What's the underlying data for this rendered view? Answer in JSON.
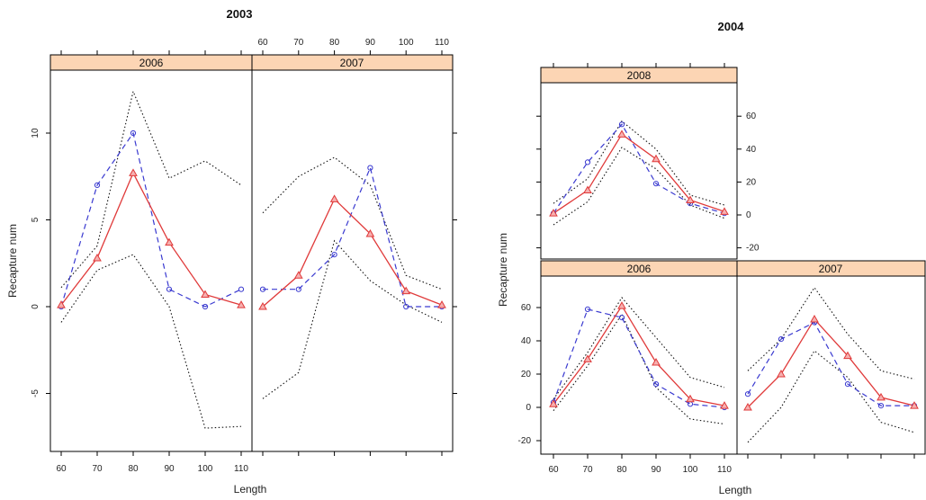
{
  "chart_data": [
    {
      "type": "line",
      "title": "2003",
      "xlabel": "Length",
      "ylabel": "Recapture num",
      "x": [
        60,
        70,
        80,
        90,
        100,
        110
      ],
      "x_ticks": [
        60,
        70,
        80,
        90,
        100,
        110
      ],
      "x_tick_labels": [
        "60",
        "70",
        "80",
        "90",
        "100",
        "110"
      ],
      "y_ticks": [
        -5,
        0,
        5,
        10
      ],
      "y_tick_labels": [
        "-5",
        "0",
        "5",
        "10"
      ],
      "ylim": [
        -8,
        14
      ],
      "grid": false,
      "styles": {
        "observed": "#3a3ad0",
        "predicted": "#e03a3a",
        "bound": "#111111",
        "strip": "#fcd5b4"
      },
      "panels": [
        {
          "strip": "2006",
          "observed": [
            0,
            7,
            10,
            1,
            0,
            1
          ],
          "predicted": [
            0.1,
            2.8,
            7.7,
            3.7,
            0.7,
            0.1
          ],
          "lower": [
            -0.9,
            2.1,
            3,
            0,
            -7,
            -6.9
          ],
          "upper": [
            1.1,
            3.5,
            12.4,
            7.4,
            8.4,
            7
          ]
        },
        {
          "strip": "2007",
          "observed": [
            1,
            1,
            3,
            8,
            0,
            0
          ],
          "predicted": [
            0,
            1.8,
            6.2,
            4.2,
            0.9,
            0.1
          ],
          "lower": [
            -5.3,
            -3.8,
            3.8,
            1.5,
            0.1,
            -0.9
          ],
          "upper": [
            5.4,
            7.5,
            8.6,
            7,
            1.8,
            1
          ]
        }
      ]
    },
    {
      "type": "line",
      "title": "2004",
      "xlabel": "Length",
      "ylabel": "Recapture num",
      "x": [
        60,
        70,
        80,
        90,
        100,
        110
      ],
      "x_ticks": [
        60,
        70,
        80,
        90,
        100,
        110
      ],
      "x_tick_labels": [
        "60",
        "70",
        "80",
        "90",
        "100",
        "110"
      ],
      "y_ticks": [
        -20,
        0,
        20,
        40,
        60
      ],
      "y_tick_labels": [
        "-20",
        "0",
        "20",
        "40",
        "60"
      ],
      "ylim": [
        -25,
        73
      ],
      "grid": false,
      "styles": {
        "observed": "#3a3ad0",
        "predicted": "#e03a3a",
        "bound": "#111111",
        "strip": "#fcd5b4"
      },
      "panels": [
        {
          "strip": "2008",
          "observed": [
            1,
            32,
            55,
            19,
            7,
            1
          ],
          "predicted": [
            1,
            15,
            49,
            34,
            9,
            2
          ],
          "lower": [
            -6,
            8,
            41,
            28,
            6,
            -2
          ],
          "upper": [
            7,
            22,
            57,
            40,
            12,
            6
          ]
        },
        {
          "strip": "2006",
          "observed": [
            3,
            59,
            54,
            14,
            2,
            0
          ],
          "predicted": [
            2,
            29,
            61,
            27,
            5,
            1
          ],
          "lower": [
            -2,
            25,
            56,
            12,
            -7,
            -10
          ],
          "upper": [
            5,
            33,
            66,
            42,
            18,
            12
          ]
        },
        {
          "strip": "2007",
          "observed": [
            8,
            41,
            51,
            14,
            1,
            1
          ],
          "predicted": [
            0,
            20,
            53,
            31,
            6,
            1
          ],
          "lower": [
            -21,
            0,
            34,
            18,
            -9,
            -15
          ],
          "upper": [
            22,
            41,
            72,
            44,
            22,
            17
          ]
        }
      ]
    }
  ]
}
